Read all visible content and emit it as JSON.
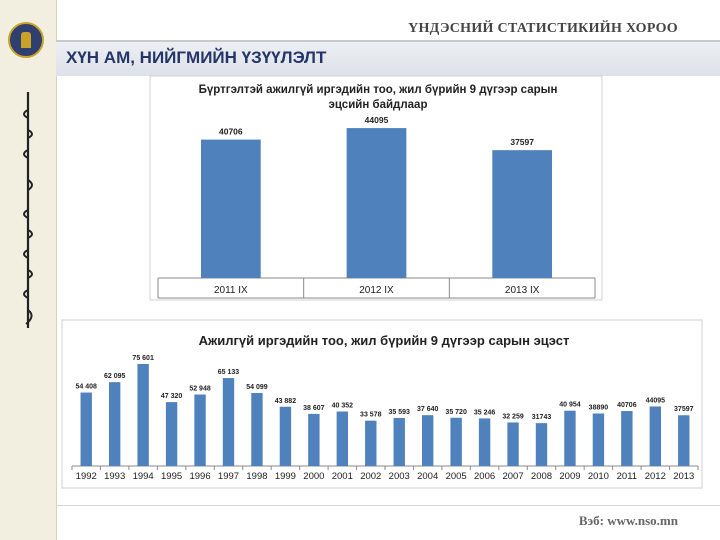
{
  "header": {
    "organization": "ҮНДЭСНИЙ СТАТИСТИКИЙН ХОРОО",
    "banner_title": "ХҮН АМ, НИЙГМИЙН ҮЗҮҮЛЭЛТ"
  },
  "footer": {
    "website": "Вэб: www.nso.mn"
  },
  "sidebar": {
    "emblem": "state-emblem-icon",
    "script": "mongolian-script-icon"
  },
  "colors": {
    "bar": "#4f81bd",
    "banner_text": "#25356a"
  },
  "chart_data": [
    {
      "type": "bar",
      "title": [
        "Бүртгэлтэй ажилгүй иргэдийн тоо, жил бүрийн 9 дүгээр сарын",
        "эцсийн байдлаар"
      ],
      "categories": [
        "2011 IX",
        "2012 IX",
        "2013 IX"
      ],
      "values": [
        40706,
        44095,
        37597
      ],
      "labels": [
        "40706",
        "44095",
        "37597"
      ],
      "ylim": [
        0,
        50000
      ],
      "grid": false,
      "legend": "none"
    },
    {
      "type": "bar",
      "title": [
        "Ажилгүй иргэдийн тоо, жил бүрийн 9 дүгээр сарын эцэст"
      ],
      "categories": [
        "1992",
        "1993",
        "1994",
        "1995",
        "1996",
        "1997",
        "1998",
        "1999",
        "2000",
        "2001",
        "2002",
        "2003",
        "2004",
        "2005",
        "2006",
        "2007",
        "2008",
        "2009",
        "2010",
        "2011",
        "2012",
        "2013"
      ],
      "values": [
        54408,
        62095,
        75601,
        47320,
        52948,
        65133,
        54099,
        43882,
        38607,
        40352,
        33578,
        35593,
        37640,
        35720,
        35246,
        32259,
        31743,
        40954,
        38890,
        40706,
        44095,
        37597
      ],
      "labels": [
        "54 408",
        "62 095",
        "75 601",
        "47 320",
        "52 948",
        "65 133",
        "54 099",
        "43 882",
        "38 607",
        "40 352",
        "33 578",
        "35 593",
        "37 640",
        "35 720",
        "35 246",
        "32 259",
        "31743",
        "40 954",
        "38890",
        "40706",
        "44095",
        "37597"
      ],
      "ylim": [
        0,
        80000
      ],
      "grid": false,
      "legend": "none"
    }
  ]
}
